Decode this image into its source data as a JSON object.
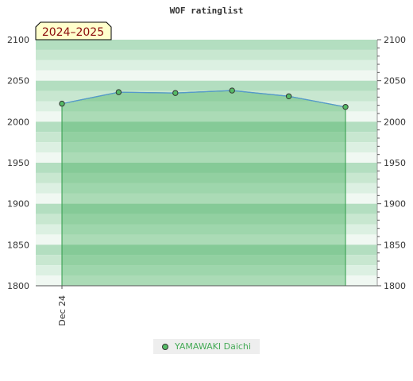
{
  "chart_data": {
    "type": "area",
    "title": "WOF ratinglist",
    "period_badge": "2024–2025",
    "y_ticks": [
      2100,
      2050,
      2000,
      1950,
      1900,
      1850,
      1800
    ],
    "ylim": [
      1800,
      2100
    ],
    "x_tick_labels": [
      "Dec 24"
    ],
    "series": [
      {
        "name": "YAMAWAKI Daichi",
        "values": [
          2022,
          2036,
          2035,
          2038,
          2031,
          2018
        ]
      }
    ],
    "legend_position": "bottom",
    "colors": {
      "fill": "#3aaa55",
      "line": "#5599cc",
      "marker": "#55bb66",
      "legend_text": "#44aa55",
      "badge_bg": "#ffffcc",
      "badge_text": "#8a0a0a"
    }
  }
}
